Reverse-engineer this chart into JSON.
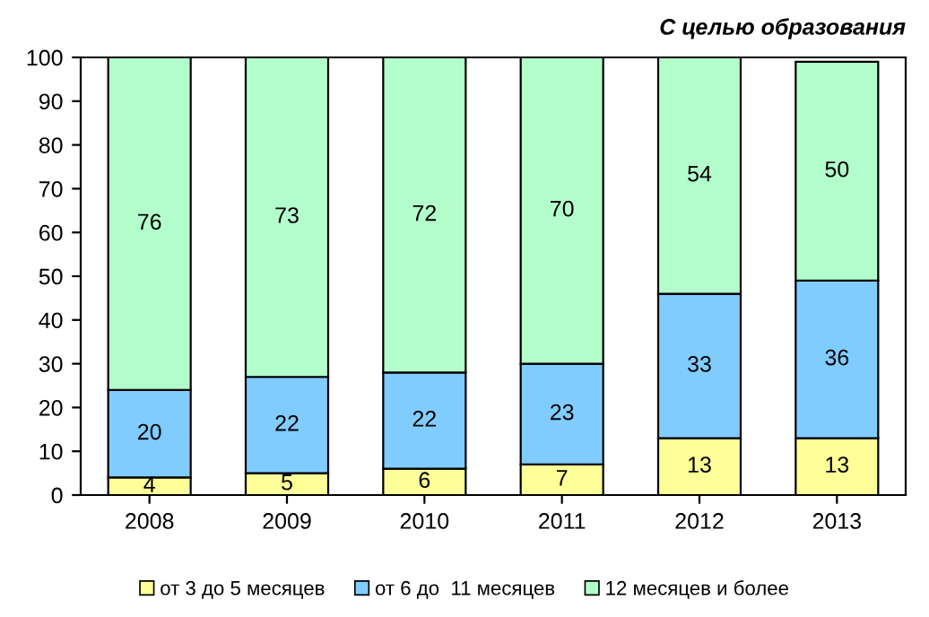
{
  "chart_data": {
    "type": "bar",
    "title": "С целью образования",
    "stacked": true,
    "data_labels": true,
    "legend": "bottom",
    "grid": false,
    "categories": [
      "2008",
      "2009",
      "2010",
      "2011",
      "2012",
      "2013"
    ],
    "series": [
      {
        "name": "от 3 до 5 месяцев",
        "color": "#ffff99",
        "values": [
          4,
          5,
          6,
          7,
          13,
          13
        ]
      },
      {
        "name": "от 6 до  11 месяцев",
        "color": "#80ccff",
        "values": [
          20,
          22,
          22,
          23,
          33,
          36
        ]
      },
      {
        "name": "12 месяцев и более",
        "color": "#b3ffcc",
        "values": [
          76,
          73,
          72,
          70,
          54,
          50
        ]
      }
    ],
    "ylim": [
      0,
      100
    ],
    "yticks": [
      0,
      10,
      20,
      30,
      40,
      50,
      60,
      70,
      80,
      90,
      100
    ]
  }
}
